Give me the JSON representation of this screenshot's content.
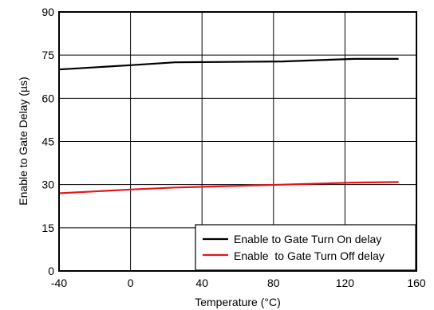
{
  "chart_data": {
    "type": "line",
    "title": "",
    "xlabel": "Temperature (°C)",
    "ylabel": "Enable to Gate Delay (µs)",
    "xlim": [
      -40,
      160
    ],
    "ylim": [
      0,
      90
    ],
    "xticks": [
      -40,
      0,
      40,
      80,
      120,
      160
    ],
    "yticks": [
      0,
      15,
      30,
      45,
      60,
      75,
      90
    ],
    "x_tick_labels": [
      "-40",
      "0",
      "40",
      "80",
      "120",
      "160"
    ],
    "y_tick_labels": [
      "0",
      "15",
      "30",
      "45",
      "60",
      "75",
      "90"
    ],
    "grid": true,
    "legend_position": "bottom-right",
    "series": [
      {
        "name": "Enable to Gate Turn On delay",
        "color": "#000000",
        "x": [
          -40,
          0,
          25,
          85,
          125,
          150
        ],
        "y": [
          70.0,
          71.5,
          72.5,
          72.8,
          73.7,
          73.7
        ]
      },
      {
        "name": "Enable  to Gate Turn Off delay",
        "color": "#e8141b",
        "x": [
          -40,
          0,
          25,
          85,
          125,
          150
        ],
        "y": [
          27.0,
          28.3,
          29.0,
          30.0,
          30.7,
          30.9
        ]
      }
    ]
  }
}
